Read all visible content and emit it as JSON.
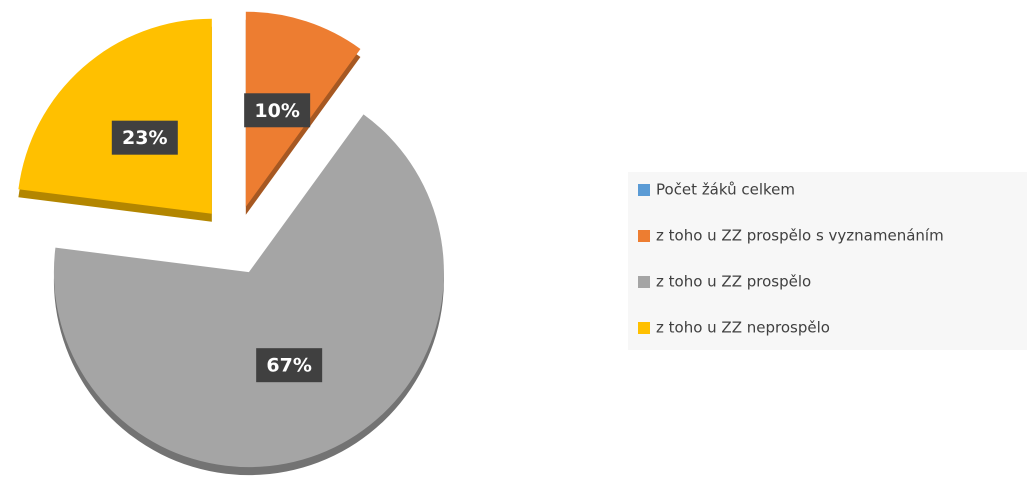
{
  "chart_data": {
    "type": "pie",
    "categories": [
      "Počet žáků celkem",
      "z toho u ZZ prospělo s vyznamenáním",
      "z toho u ZZ prospělo",
      "z toho u ZZ neprospělo"
    ],
    "values": [
      0,
      10,
      67,
      23
    ],
    "value_labels": [
      null,
      "10%",
      "67%",
      "23%"
    ],
    "colors": [
      "#5b9bd5",
      "#ed7d31",
      "#a5a5a5",
      "#ffc000"
    ],
    "legend": "right"
  }
}
